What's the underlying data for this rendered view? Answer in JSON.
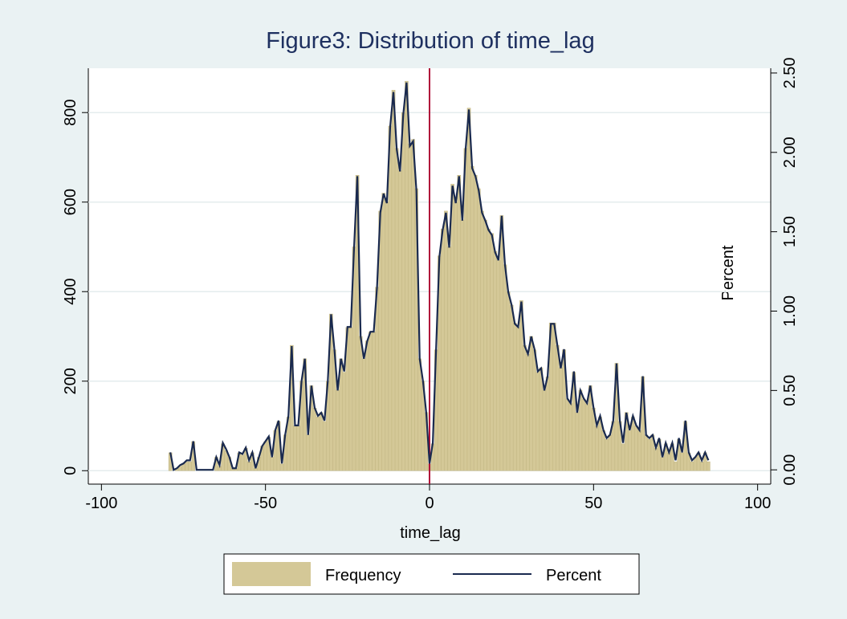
{
  "chart_data": {
    "type": "histogram_line",
    "title": "Figure3: Distribution of time_lag",
    "x_label": "time_lag",
    "y2_label": "Percent",
    "x": [
      -79,
      -78,
      -77,
      -76,
      -75,
      -74,
      -73,
      -72,
      -71,
      -70,
      -69,
      -68,
      -67,
      -66,
      -65,
      -64,
      -63,
      -62,
      -61,
      -60,
      -59,
      -58,
      -57,
      -56,
      -55,
      -54,
      -53,
      -52,
      -51,
      -50,
      -49,
      -48,
      -47,
      -46,
      -45,
      -44,
      -43,
      -42,
      -41,
      -40,
      -39,
      -38,
      -37,
      -36,
      -35,
      -34,
      -33,
      -32,
      -31,
      -30,
      -29,
      -28,
      -27,
      -26,
      -25,
      -24,
      -23,
      -22,
      -21,
      -20,
      -19,
      -18,
      -17,
      -16,
      -15,
      -14,
      -13,
      -12,
      -11,
      -10,
      -9,
      -8,
      -7,
      -6,
      -5,
      -4,
      -3,
      -2,
      -1,
      0,
      1,
      2,
      3,
      4,
      5,
      6,
      7,
      8,
      9,
      10,
      11,
      12,
      13,
      14,
      15,
      16,
      17,
      18,
      19,
      20,
      21,
      22,
      23,
      24,
      25,
      26,
      27,
      28,
      29,
      30,
      31,
      32,
      33,
      34,
      35,
      36,
      37,
      38,
      39,
      40,
      41,
      42,
      43,
      44,
      45,
      46,
      47,
      48,
      49,
      50,
      51,
      52,
      53,
      54,
      55,
      56,
      57,
      58,
      59,
      60,
      61,
      62,
      63,
      64,
      65,
      66,
      67,
      68,
      69,
      70,
      71,
      72,
      73,
      74,
      75,
      76,
      77,
      78,
      79,
      80,
      81,
      82,
      83,
      84,
      85
    ],
    "series": [
      {
        "name": "Frequency",
        "color": "#d4c897",
        "axis": "y",
        "values": [
          40,
          0,
          5,
          10,
          15,
          20,
          20,
          65,
          0,
          0,
          0,
          0,
          0,
          0,
          30,
          10,
          60,
          45,
          30,
          5,
          5,
          40,
          35,
          50,
          20,
          40,
          5,
          30,
          55,
          65,
          75,
          30,
          90,
          110,
          15,
          80,
          120,
          280,
          100,
          100,
          200,
          250,
          80,
          190,
          140,
          120,
          130,
          110,
          200,
          350,
          270,
          180,
          250,
          220,
          320,
          320,
          500,
          660,
          300,
          250,
          290,
          310,
          310,
          410,
          580,
          620,
          600,
          770,
          850,
          720,
          670,
          800,
          870,
          730,
          740,
          630,
          250,
          200,
          130,
          15,
          60,
          270,
          480,
          540,
          580,
          500,
          640,
          600,
          660,
          560,
          720,
          810,
          680,
          660,
          630,
          580,
          560,
          540,
          530,
          490,
          470,
          570,
          460,
          400,
          370,
          330,
          320,
          380,
          280,
          260,
          300,
          270,
          220,
          230,
          180,
          210,
          330,
          330,
          280,
          230,
          270,
          160,
          150,
          220,
          130,
          180,
          160,
          150,
          190,
          140,
          100,
          120,
          90,
          70,
          80,
          110,
          240,
          110,
          60,
          130,
          90,
          120,
          100,
          90,
          210,
          80,
          70,
          80,
          50,
          70,
          30,
          60,
          40,
          60,
          20,
          70,
          40,
          110,
          40,
          20,
          30,
          40,
          20,
          40,
          20
        ]
      },
      {
        "name": "Percent",
        "color": "#1a2a4f",
        "axis": "y2",
        "values": [
          0.11,
          0,
          0.01,
          0.03,
          0.04,
          0.06,
          0.06,
          0.18,
          0,
          0,
          0,
          0,
          0,
          0,
          0.08,
          0.03,
          0.17,
          0.13,
          0.08,
          0.01,
          0.01,
          0.11,
          0.1,
          0.14,
          0.06,
          0.11,
          0.01,
          0.08,
          0.15,
          0.18,
          0.21,
          0.08,
          0.25,
          0.31,
          0.04,
          0.22,
          0.34,
          0.78,
          0.28,
          0.28,
          0.56,
          0.7,
          0.22,
          0.53,
          0.39,
          0.34,
          0.36,
          0.31,
          0.56,
          0.98,
          0.76,
          0.5,
          0.7,
          0.62,
          0.9,
          0.9,
          1.4,
          1.85,
          0.84,
          0.7,
          0.81,
          0.87,
          0.87,
          1.15,
          1.62,
          1.74,
          1.68,
          2.16,
          2.38,
          2.02,
          1.88,
          2.24,
          2.44,
          2.04,
          2.07,
          1.76,
          0.7,
          0.56,
          0.36,
          0.04,
          0.17,
          0.76,
          1.34,
          1.51,
          1.62,
          1.4,
          1.79,
          1.68,
          1.85,
          1.57,
          2.02,
          2.27,
          1.9,
          1.85,
          1.76,
          1.62,
          1.57,
          1.51,
          1.48,
          1.37,
          1.32,
          1.6,
          1.29,
          1.12,
          1.04,
          0.92,
          0.9,
          1.06,
          0.78,
          0.73,
          0.84,
          0.76,
          0.62,
          0.64,
          0.5,
          0.59,
          0.92,
          0.92,
          0.78,
          0.64,
          0.76,
          0.45,
          0.42,
          0.62,
          0.36,
          0.5,
          0.45,
          0.42,
          0.53,
          0.39,
          0.28,
          0.34,
          0.25,
          0.2,
          0.22,
          0.31,
          0.67,
          0.31,
          0.17,
          0.36,
          0.25,
          0.34,
          0.28,
          0.25,
          0.59,
          0.22,
          0.2,
          0.22,
          0.14,
          0.2,
          0.08,
          0.17,
          0.11,
          0.17,
          0.06,
          0.2,
          0.11,
          0.31,
          0.11,
          0.06,
          0.08,
          0.11,
          0.06,
          0.11,
          0.06
        ]
      }
    ],
    "xlim": [
      -104,
      104
    ],
    "xticks": [
      -100,
      -50,
      0,
      50,
      100
    ],
    "ylim": [
      -30,
      899
    ],
    "yticks": [
      0,
      200,
      400,
      600,
      800
    ],
    "y2lim": [
      -0.09,
      2.53
    ],
    "y2ticks": [
      {
        "value": 0,
        "label": "0.00"
      },
      {
        "value": 0.5,
        "label": "0.50"
      },
      {
        "value": 1,
        "label": "1.00"
      },
      {
        "value": 1.5,
        "label": "1.50"
      },
      {
        "value": 2,
        "label": "2.00"
      },
      {
        "value": 2.5,
        "label": "2.50"
      }
    ],
    "xline": 0,
    "xline_color": "#b0103a",
    "grid": true
  }
}
